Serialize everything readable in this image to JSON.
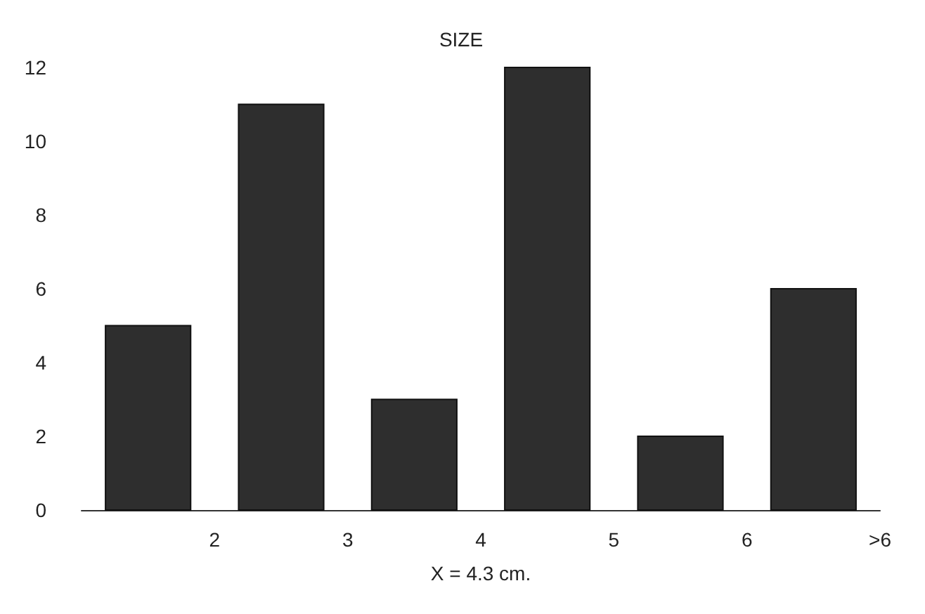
{
  "chart_data": {
    "type": "histogram",
    "title": "SIZE",
    "xlabel": "X = 4.3 cm.",
    "bins": [
      1,
      2,
      3,
      4,
      5,
      6,
      7
    ],
    "values": [
      5,
      11,
      3,
      12,
      2,
      6
    ],
    "color": "#2e2e2e",
    "xlim": [
      1,
      7
    ],
    "xticks": [
      2,
      3,
      4,
      5,
      6,
      {
        "value": 7,
        "label": ">6"
      }
    ],
    "ylim": [
      0,
      12
    ],
    "yticks": [
      0,
      2,
      4,
      6,
      8,
      10,
      12
    ],
    "grid": false
  }
}
